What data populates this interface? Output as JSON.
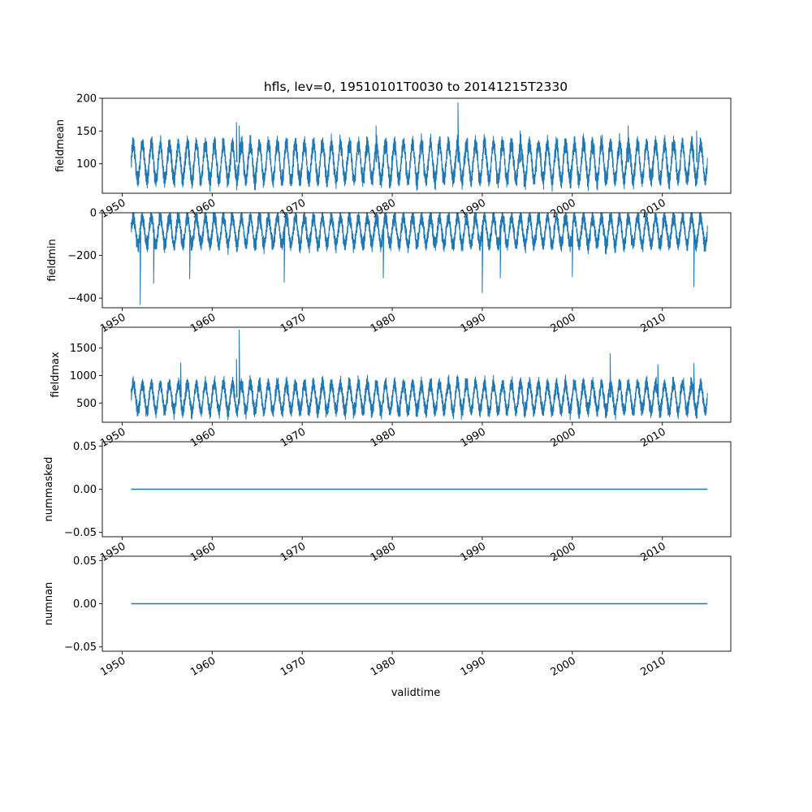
{
  "chart_data": {
    "title": "hfls, lev=0, 19510101T0030 to 20141215T2330",
    "xlabel": "validtime",
    "x_tick_labels": [
      "1950",
      "1960",
      "1970",
      "1980",
      "1990",
      "2000",
      "2010"
    ],
    "x_tick_values": [
      1950,
      1960,
      1970,
      1980,
      1990,
      2000,
      2010
    ],
    "xlim": [
      1947.8,
      2017.6
    ],
    "x_data_range": [
      1951.0,
      2015.0
    ],
    "line_color": "#1f77b4",
    "subplots": [
      {
        "type": "line",
        "ylabel": "fieldmean",
        "ylim": [
          55,
          200
        ],
        "yticks": [
          100,
          150,
          200
        ],
        "ytick_labels": [
          "100",
          "150",
          "200"
        ],
        "band": [
          75,
          130
        ],
        "noise": 15,
        "spikes": [
          {
            "x": 1962.7,
            "y": 163
          },
          {
            "x": 1963.0,
            "y": 158
          },
          {
            "x": 1978.2,
            "y": 158
          },
          {
            "x": 1987.3,
            "y": 193
          },
          {
            "x": 1994.2,
            "y": 150
          },
          {
            "x": 2006.2,
            "y": 158
          },
          {
            "x": 2013.8,
            "y": 150
          }
        ]
      },
      {
        "type": "line",
        "ylabel": "fieldmin",
        "ylim": [
          -445,
          0
        ],
        "yticks": [
          -400,
          -200,
          0
        ],
        "ytick_labels": [
          "−400",
          "−200",
          "0"
        ],
        "band": [
          -150,
          -20
        ],
        "noise": 40,
        "spikes": [
          {
            "x": 1952.0,
            "y": -430
          },
          {
            "x": 1953.5,
            "y": -330
          },
          {
            "x": 1957.5,
            "y": -310
          },
          {
            "x": 1968.0,
            "y": -325
          },
          {
            "x": 1979.0,
            "y": -305
          },
          {
            "x": 1990.0,
            "y": -375
          },
          {
            "x": 1992.0,
            "y": -305
          },
          {
            "x": 2000.0,
            "y": -300
          },
          {
            "x": 2013.5,
            "y": -345
          }
        ]
      },
      {
        "type": "line",
        "ylabel": "fieldmax",
        "ylim": [
          150,
          1880
        ],
        "yticks": [
          500,
          1000,
          1500
        ],
        "ytick_labels": [
          "500",
          "1000",
          "1500"
        ],
        "band": [
          350,
          850
        ],
        "noise": 150,
        "spikes": [
          {
            "x": 1956.5,
            "y": 1230
          },
          {
            "x": 1962.7,
            "y": 1300
          },
          {
            "x": 1963.0,
            "y": 1830
          },
          {
            "x": 2004.2,
            "y": 1400
          },
          {
            "x": 2009.5,
            "y": 1200
          },
          {
            "x": 2013.5,
            "y": 1220
          }
        ]
      },
      {
        "type": "line",
        "ylabel": "nummasked",
        "ylim": [
          -0.055,
          0.055
        ],
        "yticks": [
          -0.05,
          0,
          0.05
        ],
        "ytick_labels": [
          "−0.05",
          "0.00",
          "0.05"
        ],
        "constant": 0
      },
      {
        "type": "line",
        "ylabel": "numnan",
        "ylim": [
          -0.055,
          0.055
        ],
        "yticks": [
          -0.05,
          0,
          0.05
        ],
        "ytick_labels": [
          "−0.05",
          "0.00",
          "0.05"
        ],
        "constant": 0
      }
    ]
  }
}
